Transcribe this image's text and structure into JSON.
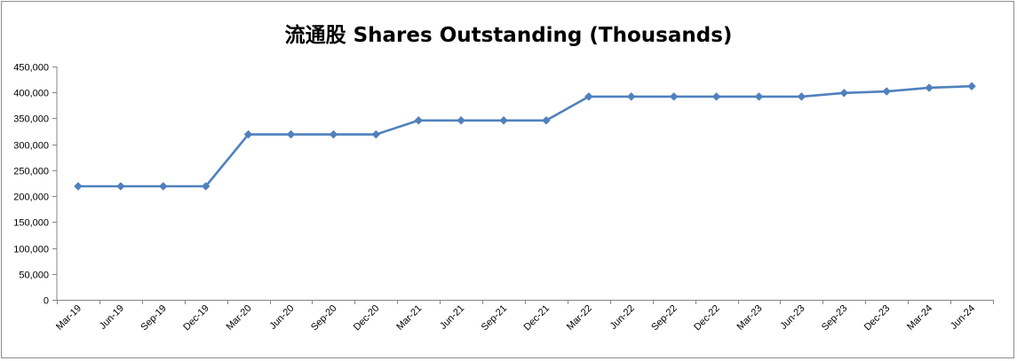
{
  "chart_data": {
    "type": "line",
    "title": "流通股 Shares Outstanding (Thousands)",
    "xlabel": "",
    "ylabel": "",
    "ylim": [
      0,
      450000
    ],
    "yticks": [
      0,
      50000,
      100000,
      150000,
      200000,
      250000,
      300000,
      350000,
      400000,
      450000
    ],
    "ytick_labels": [
      "0",
      "50,000",
      "100,000",
      "150,000",
      "200,000",
      "250,000",
      "300,000",
      "350,000",
      "400,000",
      "450,000"
    ],
    "grid": false,
    "legend": "none",
    "categories": [
      "Mar-19",
      "Jun-19",
      "Sep-19",
      "Dec-19",
      "Mar-20",
      "Jun-20",
      "Sep-20",
      "Dec-20",
      "Mar-21",
      "Jun-21",
      "Sep-21",
      "Dec-21",
      "Mar-22",
      "Jun-22",
      "Sep-22",
      "Dec-22",
      "Mar-23",
      "Jun-23",
      "Sep-23",
      "Dec-23",
      "Mar-24",
      "Jun-24"
    ],
    "series": [
      {
        "values": [
          219000,
          219000,
          219000,
          219000,
          319000,
          319000,
          319000,
          319000,
          346000,
          346000,
          346000,
          346000,
          392000,
          392000,
          392000,
          392000,
          392000,
          392000,
          399000,
          402000,
          409000,
          412000
        ],
        "color": "#4f81bd",
        "marker": "diamond"
      }
    ]
  }
}
